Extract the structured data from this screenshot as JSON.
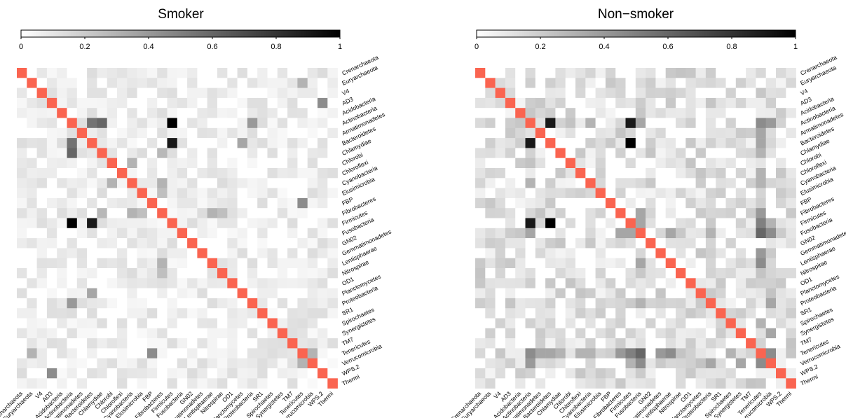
{
  "colors": {
    "diagonal": "#FA6450",
    "scale_low": "#FFFFFF",
    "scale_high": "#000000",
    "text": "#000000"
  },
  "colorbar": {
    "ticks": [
      "0",
      "0.2",
      "0.4",
      "0.6",
      "0.8",
      "1"
    ],
    "tick_values": [
      0,
      0.2,
      0.4,
      0.6,
      0.8,
      1
    ],
    "range": [
      0,
      1
    ]
  },
  "chart_data": [
    {
      "type": "heatmap",
      "title": "Smoker",
      "diagonal_value": 1,
      "labels": [
        "Crenarchaeota",
        "Euryarchaeota",
        "V4",
        "AD3",
        "Acidobacteria",
        "Actinobacteria",
        "Armatimonadetes",
        "Bacteroidetes",
        "Chlamydiae",
        "Chlorobi",
        "Chloroflexi",
        "Cyanobacteria",
        "Elusimicrobia",
        "FBP",
        "Fibrobacteres",
        "Firmicutes",
        "Fusobacteria",
        "GN02",
        "Gemmatimonadetes",
        "Lentisphaerae",
        "Nitrospirae",
        "OD1",
        "Planctomycetes",
        "Proteobacteria",
        "SR1",
        "Spirochaetes",
        "Synergistetes",
        "TM7",
        "Tenericutes",
        "Verrucomicrobia",
        "WPS.2",
        "Thermi"
      ],
      "strong_pairs": [
        {
          "a": "Actinobacteria",
          "b": "Firmicutes",
          "value": 1.0
        },
        {
          "a": "Bacteroidetes",
          "b": "Firmicutes",
          "value": 0.9
        },
        {
          "a": "Actinobacteria",
          "b": "Chlamydiae",
          "value": 0.6
        },
        {
          "a": "Actinobacteria",
          "b": "Bacteroidetes",
          "value": 0.55
        },
        {
          "a": "Euryarchaeota",
          "b": "Tenericutes",
          "value": 0.3
        },
        {
          "a": "FBP",
          "b": "Tenericutes",
          "value": 0.45
        },
        {
          "a": "AD3",
          "b": "WPS.2",
          "value": 0.45
        },
        {
          "a": "Actinobacteria",
          "b": "Proteobacteria",
          "value": 0.4
        },
        {
          "a": "Bacteroidetes",
          "b": "Planctomycetes",
          "value": 0.35
        },
        {
          "a": "Chlorobi",
          "b": "Cyanobacteria",
          "value": 0.3
        },
        {
          "a": "Cyanobacteria",
          "b": "Fibrobacteres",
          "value": 0.3
        },
        {
          "a": "Fibrobacteres",
          "b": "Lentisphaerae",
          "value": 0.3
        },
        {
          "a": "Tenericutes",
          "b": "Verrucomicrobia",
          "value": 0.3
        },
        {
          "a": "Elusimicrobia",
          "b": "Fibrobacteres",
          "value": 0.25
        },
        {
          "a": "Chlamydiae",
          "b": "Fibrobacteres",
          "value": 0.28
        },
        {
          "a": "Fibrobacteres",
          "b": "Nitrospirae",
          "value": 0.25
        }
      ],
      "background_level": 0.08,
      "seed": 7
    },
    {
      "type": "heatmap",
      "title": "Non−smoker",
      "diagonal_value": 1,
      "labels": [
        "Crenarchaeota",
        "Euryarchaeota",
        "V4",
        "AD3",
        "Acidobacteria",
        "Actinobacteria",
        "Armatimonadetes",
        "Bacteroidetes",
        "Chlamydiae",
        "Chlorobi",
        "Chloroflexi",
        "Cyanobacteria",
        "Elusimicrobia",
        "FBP",
        "Fibrobacteres",
        "Firmicutes",
        "Fusobacteria",
        "GN02",
        "Gemmatimonadetes",
        "Lentisphaerae",
        "Nitrospirae",
        "OD1",
        "Planctomycetes",
        "Proteobacteria",
        "SR1",
        "Spirochaetes",
        "Synergistetes",
        "TM7",
        "Tenericutes",
        "Verrucomicrobia",
        "WPS.2",
        "Thermi"
      ],
      "strong_pairs": [
        {
          "a": "Bacteroidetes",
          "b": "Firmicutes",
          "value": 1.0
        },
        {
          "a": "Actinobacteria",
          "b": "Firmicutes",
          "value": 0.9
        },
        {
          "a": "Actinobacteria",
          "b": "Bacteroidetes",
          "value": 0.9
        },
        {
          "a": "Fusobacteria",
          "b": "Tenericutes",
          "value": 0.6
        },
        {
          "a": "Firmicutes",
          "b": "Tenericutes",
          "value": 0.5
        },
        {
          "a": "Actinobacteria",
          "b": "Tenericutes",
          "value": 0.45
        },
        {
          "a": "Fusobacteria",
          "b": "Verrucomicrobia",
          "value": 0.45
        },
        {
          "a": "Actinobacteria",
          "b": "Verrucomicrobia",
          "value": 0.4
        },
        {
          "a": "Lentisphaerae",
          "b": "Tenericutes",
          "value": 0.45
        },
        {
          "a": "Tenericutes",
          "b": "Verrucomicrobia",
          "value": 0.45
        },
        {
          "a": "Fibrobacteres",
          "b": "Tenericutes",
          "value": 0.4
        },
        {
          "a": "Proteobacteria",
          "b": "Verrucomicrobia",
          "value": 0.35
        },
        {
          "a": "Bacteroidetes",
          "b": "Tenericutes",
          "value": 0.35
        },
        {
          "a": "Gemmatimonadetes",
          "b": "Tenericutes",
          "value": 0.4
        },
        {
          "a": "Armatimonadetes",
          "b": "Tenericutes",
          "value": 0.35
        },
        {
          "a": "Chlamydiae",
          "b": "Tenericutes",
          "value": 0.3
        },
        {
          "a": "Cyanobacteria",
          "b": "Tenericutes",
          "value": 0.3
        },
        {
          "a": "Fusobacteria",
          "b": "Fibrobacteres",
          "value": 0.35
        },
        {
          "a": "Fusobacteria",
          "b": "Actinobacteria",
          "value": 0.35
        },
        {
          "a": "Fusobacteria",
          "b": "Proteobacteria",
          "value": 0.3
        },
        {
          "a": "Fusobacteria",
          "b": "Lentisphaerae",
          "value": 0.35
        },
        {
          "a": "Synergistetes",
          "b": "Verrucomicrobia",
          "value": 0.35
        },
        {
          "a": "Actinobacteria",
          "b": "Cyanobacteria",
          "value": 0.3
        },
        {
          "a": "Firmicutes",
          "b": "Verrucomicrobia",
          "value": 0.3
        },
        {
          "a": "Spirochaetes",
          "b": "Tenericutes",
          "value": 0.3
        },
        {
          "a": "Chloroflexi",
          "b": "Tenericutes",
          "value": 0.3
        },
        {
          "a": "Firmicutes",
          "b": "Fusobacteria",
          "value": 0.35
        }
      ],
      "background_level": 0.14,
      "seed": 19
    }
  ]
}
